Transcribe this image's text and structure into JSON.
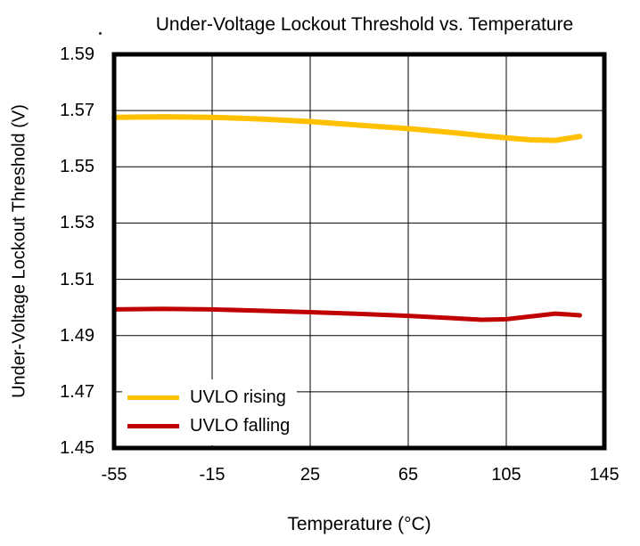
{
  "chart_data": {
    "type": "line",
    "title": "Under-Voltage Lockout Threshold vs. Temperature",
    "xlabel": "Temperature (°C)",
    "ylabel": "Under-Voltage Lockout Threshold (V)",
    "xlim": [
      -55,
      145
    ],
    "ylim": [
      1.45,
      1.59
    ],
    "xticks": [
      -55,
      -15,
      25,
      65,
      105,
      145
    ],
    "yticks": [
      1.59,
      1.57,
      1.55,
      1.53,
      1.51,
      1.49,
      1.47,
      1.45
    ],
    "y_tick_decimals": 2,
    "grid": true,
    "grid_color": "#000000",
    "border_color": "#000000",
    "legend_position": "inside-lower-left",
    "x": [
      -55,
      -35,
      -15,
      5,
      25,
      45,
      65,
      85,
      95,
      105,
      115,
      125,
      135
    ],
    "series": [
      {
        "name": "UVLO rising",
        "color": "#FFC000",
        "stroke_width": 6,
        "values": [
          1.5676,
          1.5678,
          1.5676,
          1.567,
          1.5661,
          1.5648,
          1.5636,
          1.562,
          1.5611,
          1.5603,
          1.5596,
          1.5594,
          1.5608
        ]
      },
      {
        "name": "UVLO falling",
        "color": "#C00000",
        "stroke_width": 5,
        "values": [
          1.4993,
          1.4995,
          1.4993,
          1.4988,
          1.4983,
          1.4977,
          1.497,
          1.4961,
          1.4956,
          1.4958,
          1.4968,
          1.4978,
          1.4972
        ]
      }
    ]
  }
}
